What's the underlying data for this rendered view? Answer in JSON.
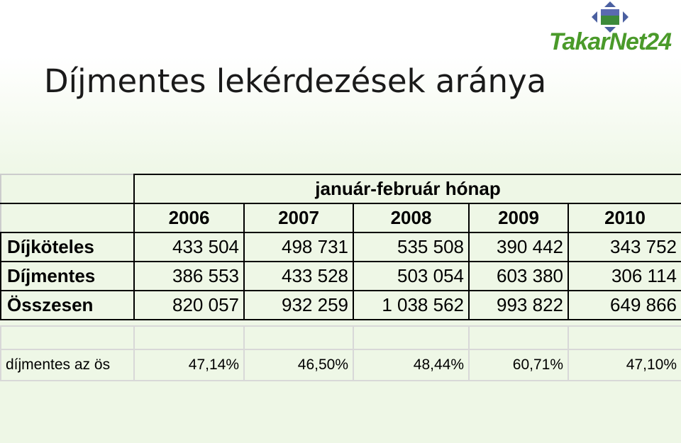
{
  "logo": {
    "text": "TakarNet24"
  },
  "title": "Díjmentes lekérdezések aránya",
  "table": {
    "header": "január-február hónap",
    "columns": [
      "2006",
      "2007",
      "2008",
      "2009",
      "2010"
    ],
    "rows": [
      {
        "label": "Díjköteles",
        "cells": [
          "433 504",
          "498 731",
          "535 508",
          "390 442",
          "343 752"
        ]
      },
      {
        "label": "Díjmentes",
        "cells": [
          "386 553",
          "433 528",
          "503 054",
          "603 380",
          "306 114"
        ]
      },
      {
        "label": "Összesen",
        "cells": [
          "820 057",
          "932 259",
          "1 038 562",
          "993 822",
          "649 866"
        ]
      }
    ],
    "ratio": {
      "label": "díjmentes az ös",
      "cells": [
        "47,14%",
        "46,50%",
        "48,44%",
        "60,71%",
        "47,10%"
      ]
    }
  }
}
